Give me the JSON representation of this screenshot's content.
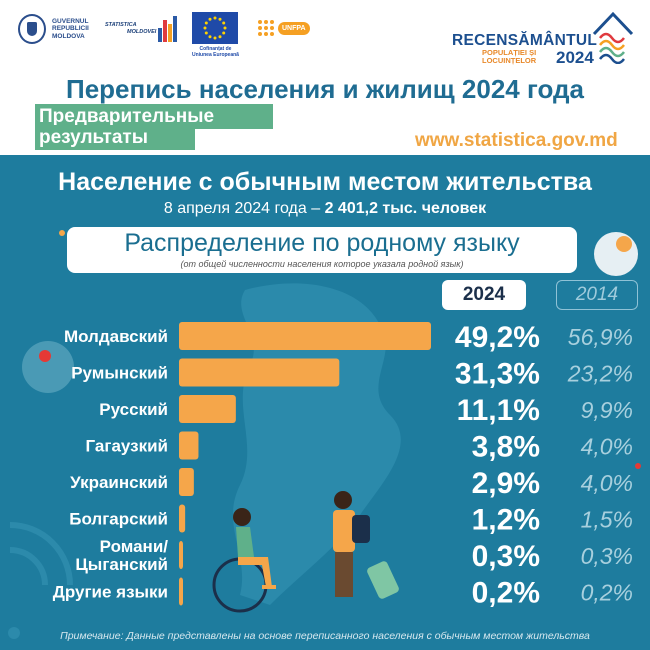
{
  "header": {
    "gov_logo_text": [
      "GUVERNUL",
      "REPUBLICII",
      "MOLDOVA"
    ],
    "stat_logo_text": [
      "STATISTICA",
      "MOLDOVEI"
    ],
    "eu_logo_text": [
      "Cofinanțat de",
      "Uniunea Europeană"
    ],
    "unfpa_text": "UNFPA",
    "census_title": "RECENSĂMÂNTUL",
    "census_sub": [
      "POPULAȚIEI ȘI",
      "LOCUINȚELOR"
    ],
    "census_year": "2024",
    "main_title": "Перепись населения и жилищ 2024 года",
    "prelim_line1": "Предварительные",
    "prelim_line2": "результаты",
    "website": "www.statistica.gov.md"
  },
  "section": {
    "title": "Население с обычным местом жительства",
    "subtitle_date": "8 апреля 2024 года – ",
    "subtitle_value": "2 401,2  тыс. человек",
    "dist_title": "Распределение по родному языку",
    "dist_note": "(от общей численности населения которое указала родной язык)"
  },
  "chart_data": {
    "type": "bar",
    "orientation": "horizontal",
    "title": "Распределение по родному языку",
    "categories": [
      "Молдавский",
      "Румынский",
      "Русский",
      "Гагаузкий",
      "Украинский",
      "Болгарский",
      "Романи/ Цыганский",
      "Другие языки"
    ],
    "series": [
      {
        "name": "2024",
        "values": [
          49.2,
          31.3,
          11.1,
          3.8,
          2.9,
          1.2,
          0.3,
          0.2
        ],
        "labels": [
          "49,2%",
          "31,3%",
          "11,1%",
          "3,8%",
          "2,9%",
          "1,2%",
          "0,3%",
          "0,2%"
        ]
      },
      {
        "name": "2014",
        "values": [
          56.9,
          23.2,
          9.9,
          4.0,
          4.0,
          1.5,
          0.3,
          0.2
        ],
        "labels": [
          "56,9%",
          "23,2%",
          "9,9%",
          "4,0%",
          "4,0%",
          "1,5%",
          "0,3%",
          "0,2%"
        ]
      }
    ],
    "bar_series": "2024",
    "grid": false,
    "colors": {
      "bar": "#f5a64a",
      "value_2024": "#ffffff",
      "value_2014": "#a8d0de"
    }
  },
  "footnote": "Примечание: Данные представлены на основе переписанного населения с обычным местом жительства",
  "colors": {
    "panel": "#1e7c9e",
    "title": "#1f6c92",
    "prelim": "#5fb08a",
    "website": "#f0a644",
    "accent_orange": "#f5a64a"
  }
}
